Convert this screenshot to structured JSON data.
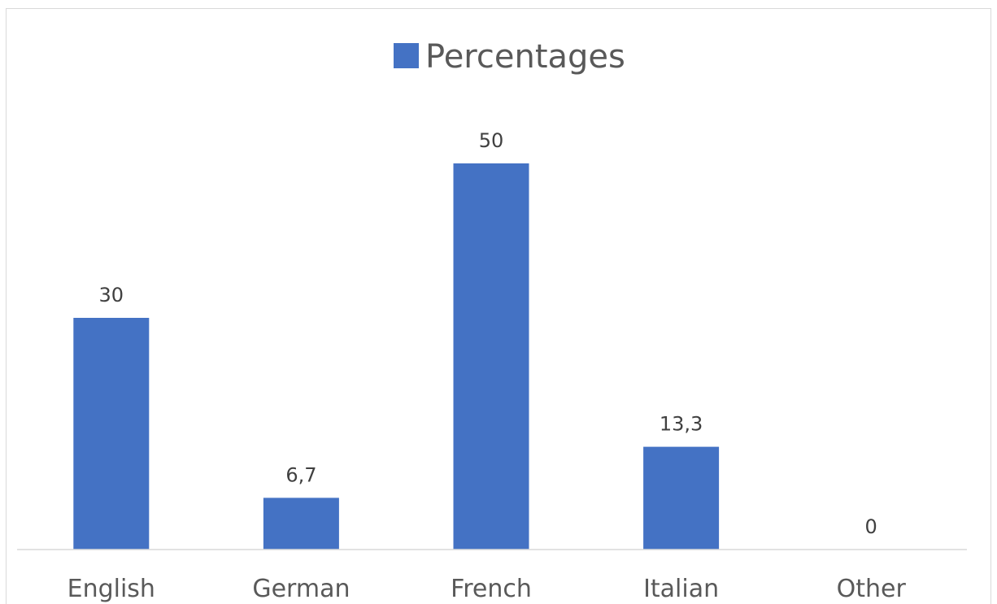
{
  "chart_data": {
    "type": "bar",
    "title": "",
    "xlabel": "",
    "ylabel": "",
    "categories": [
      "English",
      "German",
      "French",
      "Italian",
      "Other"
    ],
    "series": [
      {
        "name": "Percentages",
        "values": [
          30,
          6.7,
          50,
          13.3,
          0
        ],
        "data_labels": [
          "30",
          "6,7",
          "50",
          "13,3",
          "0"
        ],
        "color": "#4472c4"
      }
    ],
    "ylim": [
      0,
      60
    ],
    "grid": false,
    "legend_position": "top"
  },
  "colors": {
    "bar": "#4472c4",
    "axis_line": "#d9d9d9",
    "text": "#595959",
    "data_label": "#404040"
  }
}
